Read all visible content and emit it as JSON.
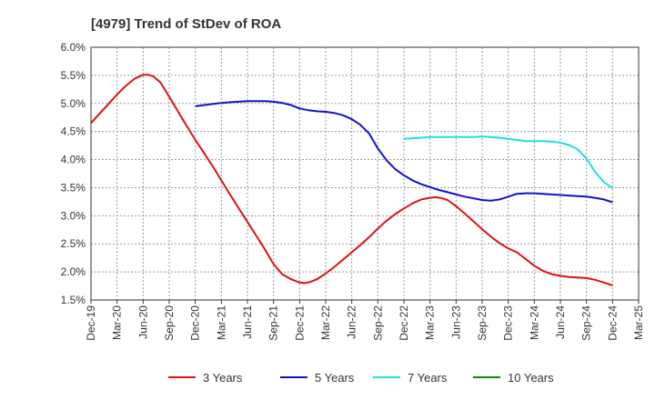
{
  "chart_data": {
    "type": "line",
    "title": "[4979]  Trend of StDev of ROA",
    "xlabel": "",
    "ylabel": "",
    "ylim": [
      1.5,
      6.0
    ],
    "y_ticks": [
      "6.0%",
      "5.5%",
      "5.0%",
      "4.5%",
      "4.0%",
      "3.5%",
      "3.0%",
      "2.5%",
      "2.0%",
      "1.5%"
    ],
    "y_tick_values": [
      6.0,
      5.5,
      5.0,
      4.5,
      4.0,
      3.5,
      3.0,
      2.5,
      2.0,
      1.5
    ],
    "x_ticks": [
      "Dec-19",
      "Mar-20",
      "Jun-20",
      "Sep-20",
      "Dec-20",
      "Mar-21",
      "Jun-21",
      "Sep-21",
      "Dec-21",
      "Mar-22",
      "Jun-22",
      "Sep-22",
      "Dec-22",
      "Mar-23",
      "Jun-23",
      "Sep-23",
      "Dec-23",
      "Mar-24",
      "Jun-24",
      "Sep-24",
      "Dec-24",
      "Mar-25"
    ],
    "grid": true,
    "legend_position": "bottom",
    "series": [
      {
        "name": "3 Years",
        "color": "#dd1111",
        "x": [
          0,
          0.33,
          0.67,
          1,
          1.33,
          1.67,
          2,
          2.2,
          2.4,
          2.67,
          3,
          3.33,
          3.67,
          4,
          4.33,
          4.67,
          5,
          5.33,
          5.67,
          6,
          6.33,
          6.67,
          7,
          7.33,
          7.67,
          8,
          8.2,
          8.4,
          8.67,
          9,
          9.33,
          9.67,
          10,
          10.33,
          10.67,
          11,
          11.33,
          11.67,
          12,
          12.33,
          12.67,
          13,
          13.2,
          13.4,
          13.67,
          14,
          14.33,
          14.67,
          15,
          15.33,
          15.67,
          16,
          16.33,
          16.67,
          17,
          17.33,
          17.67,
          18,
          18.33,
          18.67,
          19,
          19.33,
          19.67,
          20
        ],
        "values": [
          4.65,
          4.82,
          4.99,
          5.16,
          5.31,
          5.44,
          5.51,
          5.51,
          5.48,
          5.37,
          5.12,
          4.86,
          4.6,
          4.35,
          4.12,
          3.88,
          3.63,
          3.38,
          3.13,
          2.89,
          2.65,
          2.4,
          2.14,
          1.96,
          1.87,
          1.81,
          1.8,
          1.82,
          1.87,
          1.97,
          2.09,
          2.22,
          2.35,
          2.48,
          2.62,
          2.77,
          2.91,
          3.03,
          3.13,
          3.22,
          3.29,
          3.32,
          3.33,
          3.32,
          3.28,
          3.17,
          3.04,
          2.9,
          2.76,
          2.63,
          2.51,
          2.42,
          2.35,
          2.23,
          2.11,
          2.02,
          1.96,
          1.93,
          1.91,
          1.9,
          1.89,
          1.86,
          1.81,
          1.76
        ]
      },
      {
        "name": "5 Years",
        "color": "#1111cc",
        "x": [
          4,
          4.33,
          4.67,
          5,
          5.33,
          5.67,
          6,
          6.33,
          6.67,
          7,
          7.33,
          7.67,
          8,
          8.33,
          8.67,
          9,
          9.33,
          9.67,
          10,
          10.33,
          10.67,
          11,
          11.33,
          11.67,
          12,
          12.33,
          12.67,
          13,
          13.33,
          13.67,
          14,
          14.33,
          14.67,
          15,
          15.33,
          15.67,
          16,
          16.33,
          16.67,
          17,
          17.33,
          17.67,
          18,
          18.33,
          18.67,
          19,
          19.33,
          19.67,
          20
        ],
        "values": [
          4.95,
          4.97,
          4.99,
          5.01,
          5.02,
          5.03,
          5.04,
          5.04,
          5.04,
          5.03,
          5.01,
          4.97,
          4.91,
          4.88,
          4.86,
          4.85,
          4.83,
          4.79,
          4.72,
          4.62,
          4.46,
          4.2,
          3.99,
          3.83,
          3.72,
          3.63,
          3.56,
          3.51,
          3.46,
          3.42,
          3.38,
          3.34,
          3.31,
          3.28,
          3.27,
          3.29,
          3.34,
          3.39,
          3.4,
          3.4,
          3.39,
          3.38,
          3.37,
          3.36,
          3.35,
          3.34,
          3.32,
          3.29,
          3.24
        ]
      },
      {
        "name": "7 Years",
        "color": "#22dddd",
        "x": [
          12,
          12.33,
          12.67,
          13,
          13.33,
          13.67,
          14,
          14.33,
          14.67,
          15,
          15.33,
          15.67,
          16,
          16.33,
          16.67,
          17,
          17.33,
          17.67,
          18,
          18.33,
          18.67,
          19,
          19.33,
          19.67,
          20
        ],
        "values": [
          4.37,
          4.38,
          4.39,
          4.4,
          4.4,
          4.4,
          4.4,
          4.4,
          4.4,
          4.41,
          4.4,
          4.39,
          4.37,
          4.35,
          4.33,
          4.33,
          4.33,
          4.32,
          4.3,
          4.26,
          4.18,
          4.02,
          3.78,
          3.6,
          3.49
        ]
      },
      {
        "name": "10 Years",
        "color": "#118811",
        "x": [],
        "values": []
      }
    ]
  }
}
